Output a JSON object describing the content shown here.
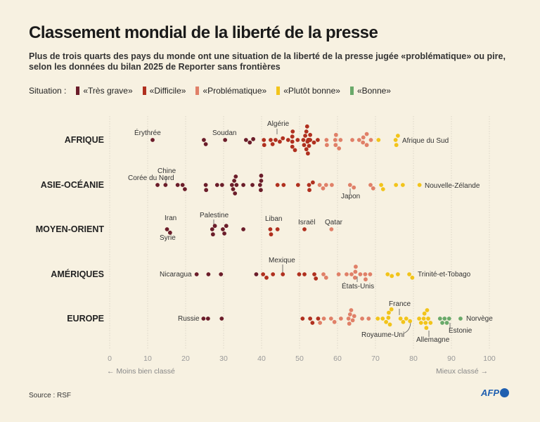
{
  "title": "Classement mondial de la liberté de la presse",
  "subtitle": "Plus de trois quarts des pays du monde ont une situation de la liberté de la presse jugée «problématique» ou pire, selon les données du bilan 2025 de Reporter sans frontières",
  "legend": {
    "label": "Situation :",
    "items": [
      {
        "label": "«Très grave»",
        "color": "#6b1d2a"
      },
      {
        "label": "«Difficile»",
        "color": "#b0301f"
      },
      {
        "label": "«Problématique»",
        "color": "#e08068"
      },
      {
        "label": "«Plutôt bonne»",
        "color": "#f2c41a"
      },
      {
        "label": "«Bonne»",
        "color": "#6aaa6a"
      }
    ]
  },
  "source": "Source : RSF",
  "logo": "AFP",
  "chart_data": {
    "type": "scatter",
    "subtype": "beeswarm",
    "xlim": [
      0,
      100
    ],
    "xticks": [
      0,
      10,
      20,
      30,
      40,
      50,
      60,
      70,
      80,
      90,
      100
    ],
    "xlabel_left": "← Moins bien classé",
    "xlabel_right": "Mieux classé →",
    "grid": true,
    "category_thresholds": [
      40,
      55,
      70,
      85
    ],
    "series": [
      {
        "name": "AFRIQUE",
        "values": [
          11.3,
          24.8,
          25.3,
          30.4,
          35.9,
          36.9,
          37.8,
          40.6,
          40.7,
          42.4,
          42.9,
          43.7,
          44.8,
          45.6,
          47.0,
          48.1,
          48.1,
          48.1,
          48.2,
          48.8,
          49.5,
          51.0,
          51.2,
          51.5,
          51.8,
          51.8,
          52.0,
          52.1,
          52.2,
          52.3,
          52.3,
          52.4,
          52.5,
          52.6,
          52.8,
          52.8,
          53.8,
          54.8,
          57.1,
          57.2,
          59.4,
          59.5,
          59.6,
          60.4,
          60.8,
          63.9,
          65.7,
          66.7,
          66.8,
          67.7,
          67.7,
          68.8,
          70.8,
          75.3,
          75.5,
          75.9
        ],
        "annotations": [
          "Érythrée",
          "Soudan",
          "Algérie",
          "Afrique du Sud"
        ]
      },
      {
        "name": "ASIE-OCÉANIE",
        "values": [
          12.6,
          14.7,
          17.9,
          19.2,
          19.8,
          25.3,
          25.4,
          28.3,
          29.6,
          32.2,
          32.5,
          32.8,
          33.0,
          33.4,
          33.2,
          35.2,
          37.6,
          39.6,
          39.8,
          39.9,
          39.9,
          44.2,
          45.8,
          49.6,
          52.5,
          52.6,
          53.5,
          55.3,
          56.2,
          57.0,
          58.5,
          63.3,
          64.3,
          68.7,
          69.4,
          71.5,
          72.0,
          75.4,
          77.2,
          81.6
        ],
        "annotations": [
          "Corée du Nord",
          "Chine",
          "Japon",
          "Nouvelle-Zélande"
        ]
      },
      {
        "name": "MOYEN-ORIENT",
        "values": [
          15.1,
          15.9,
          27.0,
          27.2,
          27.7,
          29.8,
          30.2,
          30.7,
          35.2,
          42.3,
          42.5,
          44.2,
          51.3,
          58.4
        ],
        "annotations": [
          "Iran",
          "Syrie",
          "Palestine",
          "Liban",
          "Israël",
          "Qatar"
        ]
      },
      {
        "name": "AMÉRIQUES",
        "values": [
          22.9,
          26.0,
          29.3,
          38.6,
          40.4,
          41.3,
          43.0,
          45.6,
          49.9,
          51.3,
          53.9,
          54.3,
          56.3,
          57.0,
          60.3,
          62.4,
          63.7,
          64.6,
          64.7,
          64.8,
          66.0,
          67.3,
          67.4,
          68.6,
          73.2,
          74.3,
          75.9,
          78.9,
          79.7
        ],
        "annotations": [
          "Mexique",
          "Nicaragua",
          "États-Unis",
          "Trinité-et-Tobago"
        ]
      },
      {
        "name": "EUROPE",
        "values": [
          24.7,
          25.9,
          29.5,
          50.8,
          52.8,
          53.4,
          54.9,
          55.4,
          56.4,
          58.3,
          59.2,
          60.9,
          62.9,
          63.1,
          63.3,
          63.6,
          64.0,
          64.4,
          66.5,
          68.2,
          70.6,
          71.9,
          72.8,
          73.4,
          73.5,
          73.8,
          74.2,
          76.6,
          77.3,
          78.1,
          79.1,
          81.5,
          82.0,
          82.7,
          82.9,
          83.2,
          83.4,
          83.6,
          83.9,
          84.5,
          87.0,
          87.6,
          88.2,
          88.8,
          89.4,
          92.4
        ],
        "annotations": [
          "France",
          "Royaume-Uni",
          "Allemagne",
          "Estonie",
          "Norvège",
          "Russie"
        ]
      }
    ]
  }
}
